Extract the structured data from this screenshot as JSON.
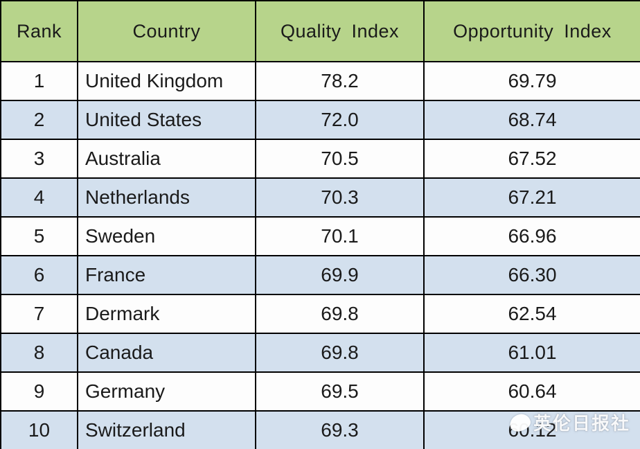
{
  "table": {
    "headers": [
      "Rank",
      "Country",
      "Quality Index",
      "Opportunity Index"
    ],
    "rows": [
      {
        "rank": "1",
        "country": "United Kingdom",
        "quality": "78.2",
        "opportunity": "69.79"
      },
      {
        "rank": "2",
        "country": "United States",
        "quality": "72.0",
        "opportunity": "68.74"
      },
      {
        "rank": "3",
        "country": "Australia",
        "quality": "70.5",
        "opportunity": "67.52"
      },
      {
        "rank": "4",
        "country": "Netherlands",
        "quality": "70.3",
        "opportunity": "67.21"
      },
      {
        "rank": "5",
        "country": "Sweden",
        "quality": "70.1",
        "opportunity": "66.96"
      },
      {
        "rank": "6",
        "country": "France",
        "quality": "69.9",
        "opportunity": "66.30"
      },
      {
        "rank": "7",
        "country": "Dermark",
        "quality": "69.8",
        "opportunity": "62.54"
      },
      {
        "rank": "8",
        "country": "Canada",
        "quality": "69.8",
        "opportunity": "61.01"
      },
      {
        "rank": "9",
        "country": "Germany",
        "quality": "69.5",
        "opportunity": "60.64"
      },
      {
        "rank": "10",
        "country": "Switzerland",
        "quality": "69.3",
        "opportunity": "60.12"
      }
    ]
  },
  "watermark": {
    "text": "英伦日报社"
  },
  "colors": {
    "header_bg": "#b7d48b",
    "row_alt_bg": "#d3e0ee",
    "row_bg": "#fdfdfd",
    "border_color": "#000000",
    "text_color": "#1a1a1a"
  },
  "chart_data": {
    "type": "table",
    "title": "",
    "columns": [
      "Rank",
      "Country",
      "Quality Index",
      "Opportunity Index"
    ],
    "rows": [
      [
        1,
        "United Kingdom",
        78.2,
        69.79
      ],
      [
        2,
        "United States",
        72.0,
        68.74
      ],
      [
        3,
        "Australia",
        70.5,
        67.52
      ],
      [
        4,
        "Netherlands",
        70.3,
        67.21
      ],
      [
        5,
        "Sweden",
        70.1,
        66.96
      ],
      [
        6,
        "France",
        69.9,
        66.3
      ],
      [
        7,
        "Dermark",
        69.8,
        62.54
      ],
      [
        8,
        "Canada",
        69.8,
        61.01
      ],
      [
        9,
        "Germany",
        69.5,
        60.64
      ],
      [
        10,
        "Switzerland",
        69.3,
        60.12
      ]
    ]
  }
}
